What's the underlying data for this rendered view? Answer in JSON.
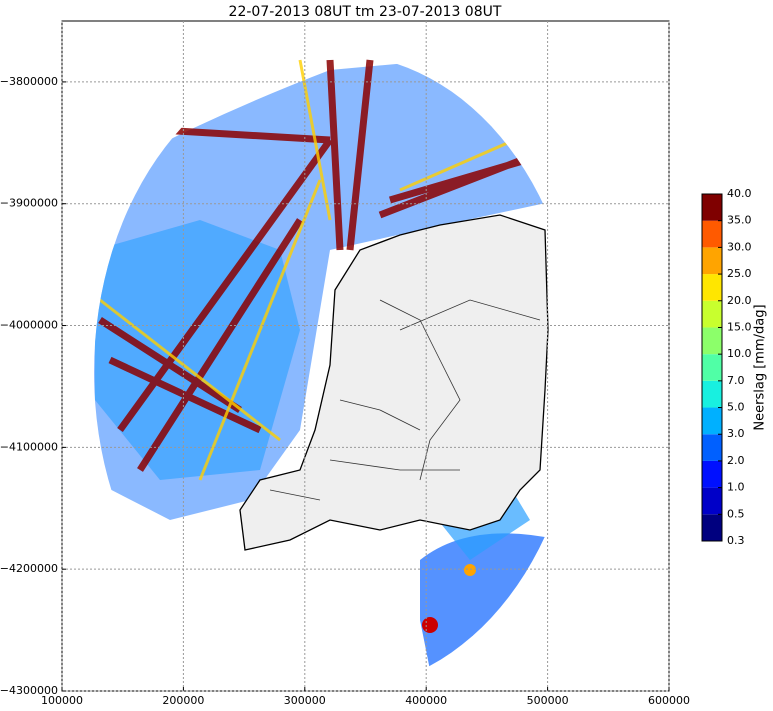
{
  "map": {
    "title": "22-07-2013 08UT tm 23-07-2013 08UT",
    "xlim": [
      100000,
      600000
    ],
    "ylim": [
      -4300000,
      -3750000
    ],
    "xticks": [
      100000,
      200000,
      300000,
      400000,
      500000,
      600000
    ],
    "yticks": [
      {
        "value": -3800000,
        "label": "−3800000"
      },
      {
        "value": -3900000,
        "label": "−3900000"
      },
      {
        "value": -4000000,
        "label": "−4000000"
      },
      {
        "value": -4100000,
        "label": "−4100000"
      },
      {
        "value": -4200000,
        "label": "−4200000"
      },
      {
        "value": -4300000,
        "label": "−4300000"
      }
    ],
    "grid": true,
    "colorbar": {
      "label": "Neerslag [mm/dag]",
      "ticks": [
        0.3,
        0.5,
        {
          "value": 1,
          "label": "1.0"
        },
        {
          "value": 2,
          "label": "2.0"
        },
        {
          "value": 3,
          "label": "3.0"
        },
        {
          "value": 5,
          "label": "5.0"
        },
        {
          "value": 7,
          "label": "7.0"
        },
        {
          "value": 10,
          "label": "10.0"
        },
        {
          "value": 15,
          "label": "15.0"
        },
        {
          "value": 20,
          "label": "20.0"
        },
        {
          "value": 25,
          "label": "25.0"
        },
        {
          "value": 30,
          "label": "30.0"
        },
        {
          "value": 35,
          "label": "35.0"
        },
        {
          "value": 40,
          "label": "40.0"
        }
      ],
      "colors": [
        "#00007f",
        "#0000c8",
        "#0010ff",
        "#0060ff",
        "#00b0ff",
        "#18f0e0",
        "#50ffa6",
        "#8cff6a",
        "#c8ff2e",
        "#ffe600",
        "#ffa400",
        "#ff5a00",
        "#e80000",
        "#7f0000"
      ]
    }
  }
}
